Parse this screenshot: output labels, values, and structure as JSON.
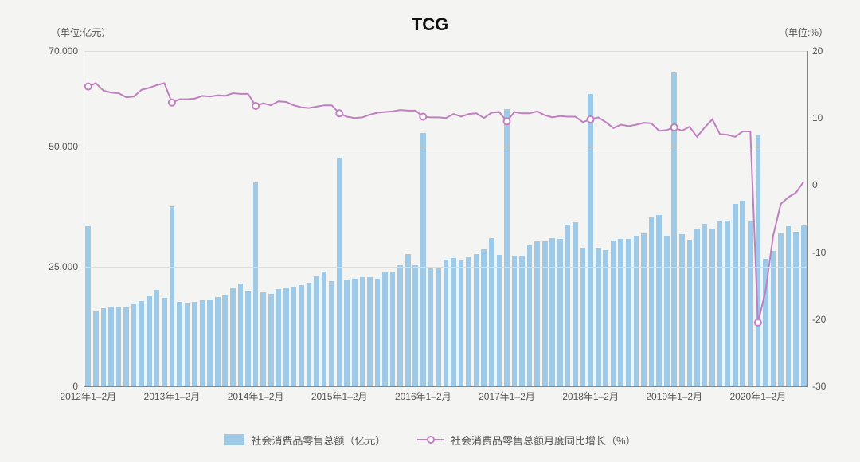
{
  "chart": {
    "type": "bar+line",
    "title": "TCG",
    "unit_left_label": "（单位:亿元）",
    "unit_right_label": "（单位:%）",
    "background_color": "#f4f4f2",
    "grid_color": "#dcdcd8",
    "axis_color": "#888888",
    "bar_color": "#9ecae8",
    "line_color": "#c07fc0",
    "marker_fill": "#ffffff",
    "marker_stroke": "#c07fc0",
    "marker_radius": 4,
    "line_width": 2,
    "left_axis": {
      "min": 0,
      "max": 70000,
      "ticks": [
        0,
        25000,
        50000,
        70000
      ],
      "tick_labels": [
        "0",
        "25,000",
        "50,000",
        "70,000"
      ]
    },
    "right_axis": {
      "min": -30,
      "max": 20,
      "ticks": [
        -30,
        -20,
        -10,
        0,
        10,
        20
      ],
      "tick_labels": [
        "-30",
        "-20",
        "-10",
        "0",
        "10",
        "20"
      ]
    },
    "x_ticks": {
      "interval": 11,
      "labels": [
        "2012年1–2月",
        "2013年1–2月",
        "2014年1–2月",
        "2015年1–2月",
        "2016年1–2月",
        "2017年1–2月",
        "2018年1–2月",
        "2019年1–2月",
        "2020年1–2月"
      ]
    },
    "bar_values": [
      33500,
      15700,
      16300,
      16600,
      16600,
      16500,
      17200,
      17800,
      18800,
      20200,
      18500,
      37500,
      17600,
      17300,
      17600,
      18000,
      18200,
      18700,
      19200,
      20700,
      21500,
      20000,
      42500,
      19700,
      19300,
      20300,
      20600,
      20800,
      21200,
      21600,
      23000,
      23900,
      22000,
      47700,
      22200,
      22400,
      22800,
      22800,
      22500,
      23700,
      23800,
      25200,
      27600,
      25300,
      52900,
      24600,
      24600,
      26400,
      26800,
      26300,
      27000,
      27600,
      28600,
      30900,
      27500,
      57900,
      27200,
      27300,
      29500,
      30300,
      30300,
      30900,
      30800,
      33800,
      34200,
      29000,
      61000,
      29000,
      28400,
      30400,
      30800,
      30700,
      31500,
      32000,
      35300,
      35800,
      31500,
      65500,
      31700,
      30600,
      32900,
      33900,
      33000,
      34500,
      34600,
      38000,
      38800,
      34400,
      52300,
      26600,
      28200,
      32000,
      33500,
      32300,
      33600
    ],
    "line_values": [
      14.7,
      15.2,
      14.1,
      13.8,
      13.7,
      13.1,
      13.2,
      14.2,
      14.5,
      14.9,
      15.2,
      12.3,
      12.8,
      12.8,
      12.9,
      13.3,
      13.2,
      13.4,
      13.3,
      13.7,
      13.6,
      13.6,
      11.8,
      12.2,
      11.9,
      12.5,
      12.4,
      11.9,
      11.6,
      11.5,
      11.7,
      11.9,
      11.9,
      10.7,
      10.2,
      10.0,
      10.1,
      10.5,
      10.8,
      10.9,
      11.0,
      11.2,
      11.1,
      11.1,
      10.2,
      10.1,
      10.1,
      10.0,
      10.6,
      10.2,
      10.6,
      10.7,
      10.0,
      10.8,
      10.9,
      9.5,
      10.9,
      10.7,
      10.7,
      11.0,
      10.4,
      10.1,
      10.3,
      10.2,
      10.2,
      9.4,
      9.8,
      10.1,
      9.4,
      8.5,
      9.0,
      8.8,
      9.0,
      9.3,
      9.2,
      8.1,
      8.2,
      8.6,
      8.1,
      8.7,
      7.2,
      8.6,
      9.8,
      7.6,
      7.5,
      7.2,
      8.0,
      8.0,
      -20.5,
      -15.8,
      -7.5,
      -2.8,
      -1.8,
      -1.1,
      0.5
    ],
    "legend": {
      "bar_label": "社会消费品零售总额（亿元）",
      "line_label": "社会消费品零售总额月度同比增长（%）"
    }
  }
}
